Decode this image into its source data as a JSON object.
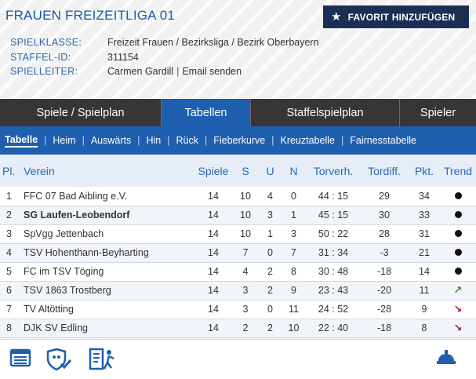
{
  "header": {
    "title": "FRAUEN FREIZEITLIGA 01",
    "favorite_button": "FAVORIT HINZUFÜGEN",
    "info": [
      {
        "label": "SPIELKLASSE:",
        "value": "Freizeit Frauen / Bezirksliga / Bezirk Oberbayern"
      },
      {
        "label": "STAFFEL-ID:",
        "value": "311154"
      },
      {
        "label": "SPIELLEITER:",
        "value": "Carmen Gardill",
        "separator": "|",
        "link": "Email senden"
      }
    ]
  },
  "main_tabs": [
    {
      "label": "Spiele / Spielplan",
      "active": false
    },
    {
      "label": "Tabellen",
      "active": true
    },
    {
      "label": "Staffelspielplan",
      "active": false
    },
    {
      "label": "Spieler",
      "active": false
    }
  ],
  "sub_tabs": [
    {
      "label": "Tabelle",
      "active": true
    },
    {
      "label": "Heim",
      "active": false
    },
    {
      "label": "Auswärts",
      "active": false
    },
    {
      "label": "Hin",
      "active": false
    },
    {
      "label": "Rück",
      "active": false
    },
    {
      "label": "Fieberkurve",
      "active": false
    },
    {
      "label": "Kreuztabelle",
      "active": false
    },
    {
      "label": "Fairnesstabelle",
      "active": false
    }
  ],
  "sub_separator": "|",
  "table": {
    "columns": [
      "Pl.",
      "Verein",
      "Spiele",
      "S",
      "U",
      "N",
      "Torverh.",
      "Tordiff.",
      "Pkt.",
      "Trend"
    ],
    "rows": [
      {
        "pl": "1",
        "team": "FFC 07 Bad Aibling e.V.",
        "games": "14",
        "s": "10",
        "u": "4",
        "n": "0",
        "goals": "44 : 15",
        "diff": "29",
        "pts": "34",
        "trend": "same",
        "bold": false
      },
      {
        "pl": "2",
        "team": "SG Laufen-Leobendorf",
        "games": "14",
        "s": "10",
        "u": "3",
        "n": "1",
        "goals": "45 : 15",
        "diff": "30",
        "pts": "33",
        "trend": "same",
        "bold": true
      },
      {
        "pl": "3",
        "team": "SpVgg Jettenbach",
        "games": "14",
        "s": "10",
        "u": "1",
        "n": "3",
        "goals": "50 : 22",
        "diff": "28",
        "pts": "31",
        "trend": "same",
        "bold": false
      },
      {
        "pl": "4",
        "team": "TSV Hohenthann-Beyharting",
        "games": "14",
        "s": "7",
        "u": "0",
        "n": "7",
        "goals": "31 : 34",
        "diff": "-3",
        "pts": "21",
        "trend": "same",
        "bold": false
      },
      {
        "pl": "5",
        "team": "FC im TSV Töging",
        "games": "14",
        "s": "4",
        "u": "2",
        "n": "8",
        "goals": "30 : 48",
        "diff": "-18",
        "pts": "14",
        "trend": "same",
        "bold": false
      },
      {
        "pl": "6",
        "team": "TSV 1863 Trostberg",
        "games": "14",
        "s": "3",
        "u": "2",
        "n": "9",
        "goals": "23 : 43",
        "diff": "-20",
        "pts": "11",
        "trend": "up",
        "bold": false
      },
      {
        "pl": "7",
        "team": "TV Altötting",
        "games": "14",
        "s": "3",
        "u": "0",
        "n": "11",
        "goals": "24 : 52",
        "diff": "-28",
        "pts": "9",
        "trend": "down",
        "bold": false
      },
      {
        "pl": "8",
        "team": "DJK SV Edling",
        "games": "14",
        "s": "2",
        "u": "2",
        "n": "10",
        "goals": "22 : 40",
        "diff": "-18",
        "pts": "8",
        "trend": "down",
        "bold": false
      }
    ]
  },
  "footer_icons": [
    "table-icon",
    "shield-check-icon",
    "referee-report-icon",
    "whistle-icon"
  ],
  "colors": {
    "brand_blue": "#1f5fb0",
    "dark_tab": "#363636",
    "fav_button": "#1b2f55",
    "trend_up": "#2e8a3a",
    "trend_down": "#b8151b"
  }
}
